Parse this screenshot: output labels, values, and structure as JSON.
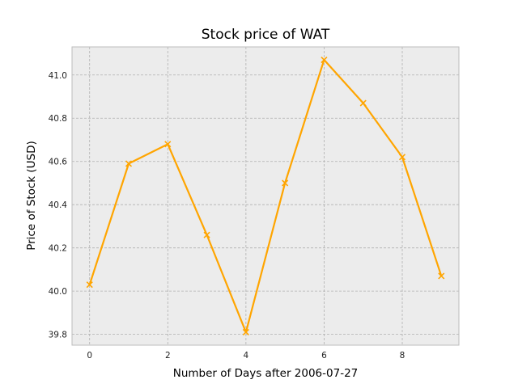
{
  "chart_data": {
    "type": "line",
    "title": "Stock price of WAT",
    "xlabel": "Number of Days after 2006-07-27",
    "ylabel": "Price of Stock (USD)",
    "x": [
      0,
      1,
      2,
      3,
      4,
      5,
      6,
      7,
      8,
      9
    ],
    "xlim": [
      -0.45,
      9.45
    ],
    "ylim": [
      39.75,
      41.13
    ],
    "xticks": [
      0,
      2,
      4,
      6,
      8
    ],
    "yticks": [
      "39.8",
      "40.0",
      "40.2",
      "40.4",
      "40.6",
      "40.8",
      "41.0"
    ],
    "grid": true,
    "series": [
      {
        "values": [
          40.03,
          40.59,
          40.68,
          40.26,
          39.81,
          40.5,
          41.07,
          40.87,
          40.62,
          40.07
        ],
        "color": "#FFA500",
        "marker": "x"
      }
    ],
    "colors": {
      "plot_background": "#ECECEC",
      "frame": "#BDBDBD"
    }
  }
}
